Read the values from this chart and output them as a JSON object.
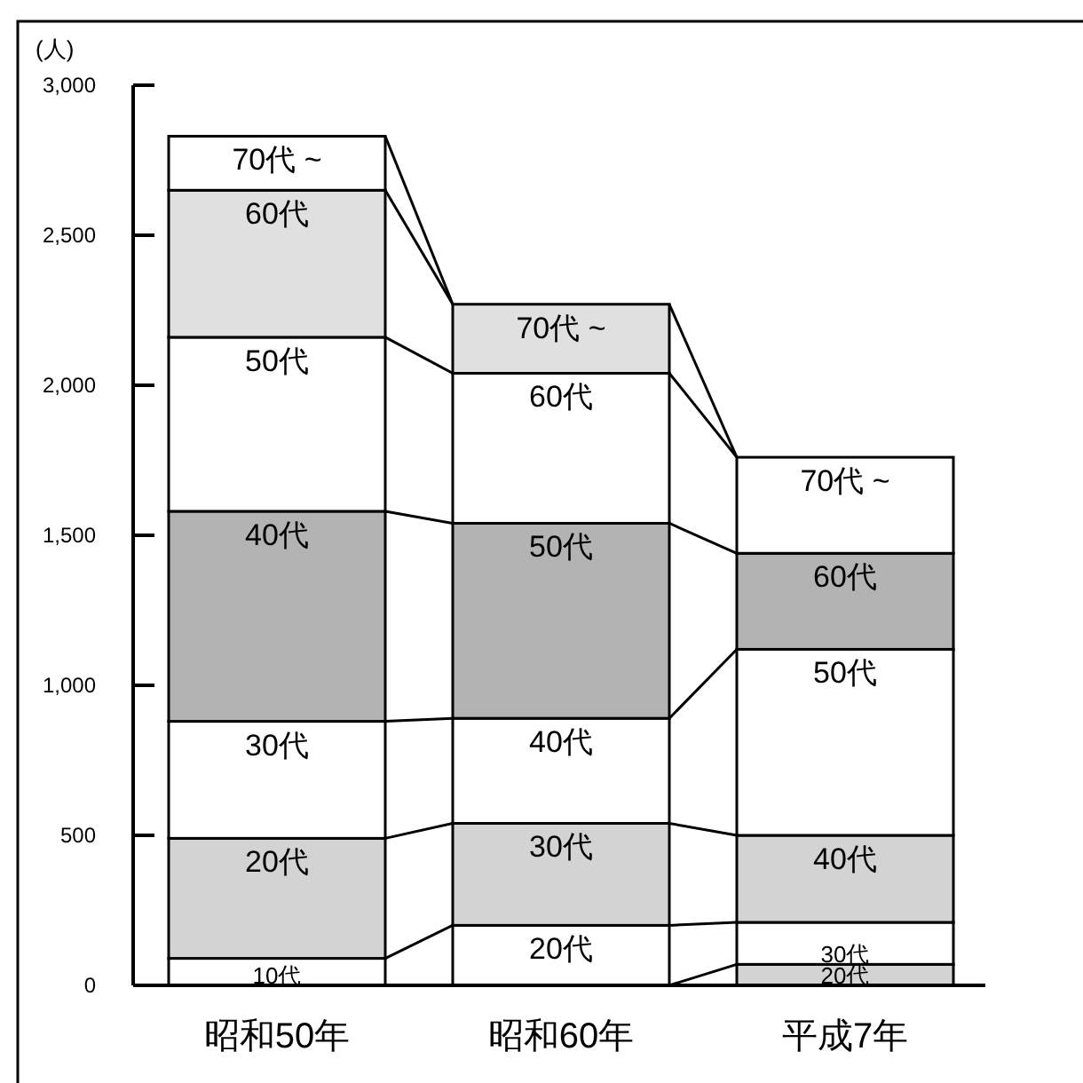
{
  "chart_data": {
    "type": "bar",
    "stacked": true,
    "ylabel": "(人)",
    "categories": [
      "昭和50年",
      "昭和60年",
      "平成7年"
    ],
    "ylim": [
      0,
      3000
    ],
    "yticks": [
      0,
      500,
      {
        "value": 1000,
        "label": "1,000"
      },
      {
        "value": 1500,
        "label": "1,500"
      },
      {
        "value": 2000,
        "label": "2,000"
      },
      {
        "value": 2500,
        "label": "2,500"
      },
      {
        "value": 3000,
        "label": "3,000"
      }
    ],
    "series": [
      {
        "name": "10代",
        "colors": [
          "#ffffff",
          null,
          null
        ],
        "values": [
          90,
          null,
          null
        ]
      },
      {
        "name": "20代",
        "colors": [
          "#d3d3d3",
          "#ffffff",
          "#d3d3d3"
        ],
        "values": [
          400,
          200,
          70
        ]
      },
      {
        "name": "30代",
        "colors": [
          "#ffffff",
          "#d3d3d3",
          "#ffffff"
        ],
        "values": [
          390,
          340,
          140
        ]
      },
      {
        "name": "40代",
        "colors": [
          "#b3b3b3",
          "#ffffff",
          "#d3d3d3"
        ],
        "values": [
          700,
          350,
          290
        ]
      },
      {
        "name": "50代",
        "colors": [
          "#ffffff",
          "#b3b3b3",
          "#ffffff"
        ],
        "values": [
          580,
          650,
          620
        ]
      },
      {
        "name": "60代",
        "colors": [
          "#e0e0e0",
          "#ffffff",
          "#b3b3b3"
        ],
        "values": [
          490,
          500,
          320
        ]
      },
      {
        "name": "70代 ~",
        "colors": [
          "#ffffff",
          "#e0e0e0",
          "#ffffff"
        ],
        "values": [
          180,
          230,
          320
        ]
      }
    ]
  }
}
